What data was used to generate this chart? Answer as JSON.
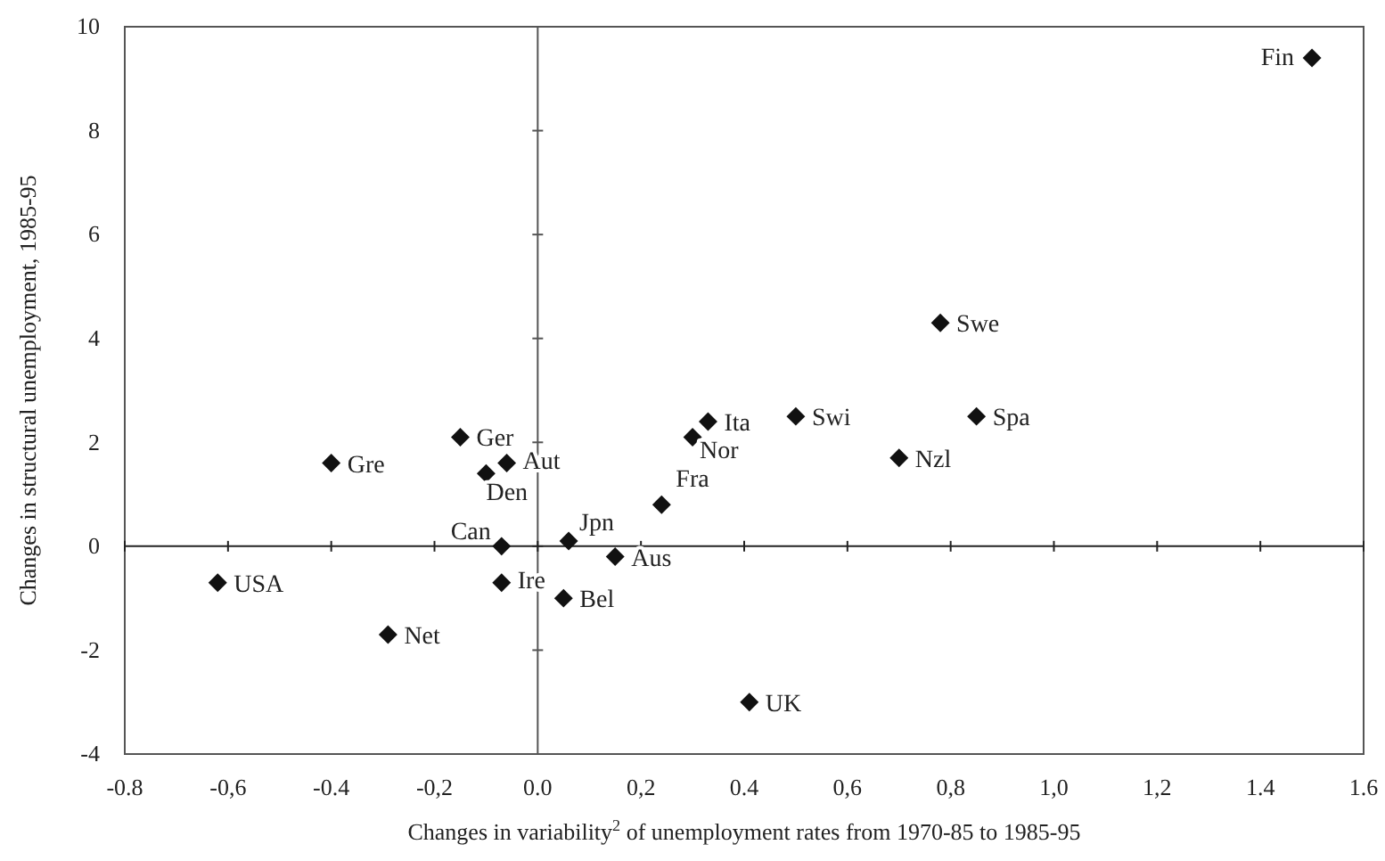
{
  "chart_data": {
    "type": "scatter",
    "xlabel": "Changes in variability$^{2}$ of unemployment rates from 1970-85 to 1985-95",
    "ylabel": "Changes in structural unemployment, 1985-95",
    "xlim": [
      -0.8,
      1.6
    ],
    "xticks": [
      {
        "value": -0.8,
        "label": "-0.8"
      },
      {
        "value": -0.6,
        "label": "-0,6"
      },
      {
        "value": -0.4,
        "label": "-0.4"
      },
      {
        "value": -0.2,
        "label": "-0,2"
      },
      {
        "value": 0,
        "label": "0.0"
      },
      {
        "value": 0.2,
        "label": "0,2"
      },
      {
        "value": 0.4,
        "label": "0.4"
      },
      {
        "value": 0.6,
        "label": "0,6"
      },
      {
        "value": 0.8,
        "label": "0,8"
      },
      {
        "value": 1.0,
        "label": "1,0"
      },
      {
        "value": 1.2,
        "label": "1,2"
      },
      {
        "value": 1.4,
        "label": "1.4"
      },
      {
        "value": 1.6,
        "label": "1.6"
      }
    ],
    "ylim": [
      -4,
      10
    ],
    "yticks": [
      -4,
      -2,
      0,
      2,
      4,
      6,
      8,
      10
    ],
    "grid": false,
    "marker": "diamond",
    "ref_lines": [
      {
        "axis": "x",
        "value": 0,
        "color": "#555555"
      },
      {
        "axis": "y",
        "value": 0,
        "color": "#222222"
      }
    ],
    "series": [
      {
        "name": "Fin",
        "color": "#111111",
        "x": [
          1.5
        ],
        "values": [
          9.4
        ]
      },
      {
        "name": "Swe",
        "color": "#111111",
        "x": [
          0.78
        ],
        "values": [
          4.3
        ]
      },
      {
        "name": "Spa",
        "color": "#111111",
        "x": [
          0.85
        ],
        "values": [
          2.5
        ]
      },
      {
        "name": "Swi",
        "color": "#111111",
        "x": [
          0.5
        ],
        "values": [
          2.5
        ]
      },
      {
        "name": "Nzl",
        "color": "#111111",
        "x": [
          0.7
        ],
        "values": [
          1.7
        ]
      },
      {
        "name": "Ita",
        "color": "#111111",
        "x": [
          0.33
        ],
        "values": [
          2.4
        ]
      },
      {
        "name": "Nor",
        "color": "#111111",
        "x": [
          0.3
        ],
        "values": [
          2.1
        ]
      },
      {
        "name": "Fra",
        "color": "#111111",
        "x": [
          0.24
        ],
        "values": [
          0.8
        ]
      },
      {
        "name": "Jpn",
        "color": "#111111",
        "x": [
          0.06
        ],
        "values": [
          0.1
        ]
      },
      {
        "name": "Aus",
        "color": "#111111",
        "x": [
          0.15
        ],
        "values": [
          -0.2
        ]
      },
      {
        "name": "Bel",
        "color": "#111111",
        "x": [
          0.05
        ],
        "values": [
          -1.0
        ]
      },
      {
        "name": "UK",
        "color": "#111111",
        "x": [
          0.41
        ],
        "values": [
          -3.0
        ]
      },
      {
        "name": "Can",
        "color": "#111111",
        "x": [
          -0.07
        ],
        "values": [
          0
        ]
      },
      {
        "name": "Ire",
        "color": "#111111",
        "x": [
          -0.07
        ],
        "values": [
          -0.7
        ]
      },
      {
        "name": "Aut",
        "color": "#111111",
        "x": [
          -0.06
        ],
        "values": [
          1.6
        ]
      },
      {
        "name": "Den",
        "color": "#111111",
        "x": [
          -0.1
        ],
        "values": [
          1.4
        ]
      },
      {
        "name": "Ger",
        "color": "#111111",
        "x": [
          -0.15
        ],
        "values": [
          2.1
        ]
      },
      {
        "name": "Gre",
        "color": "#111111",
        "x": [
          -0.4
        ],
        "values": [
          1.6
        ]
      },
      {
        "name": "USA",
        "color": "#111111",
        "x": [
          -0.62
        ],
        "values": [
          -0.7
        ]
      },
      {
        "name": "Net",
        "color": "#111111",
        "x": [
          -0.29
        ],
        "values": [
          -1.7
        ]
      }
    ]
  }
}
